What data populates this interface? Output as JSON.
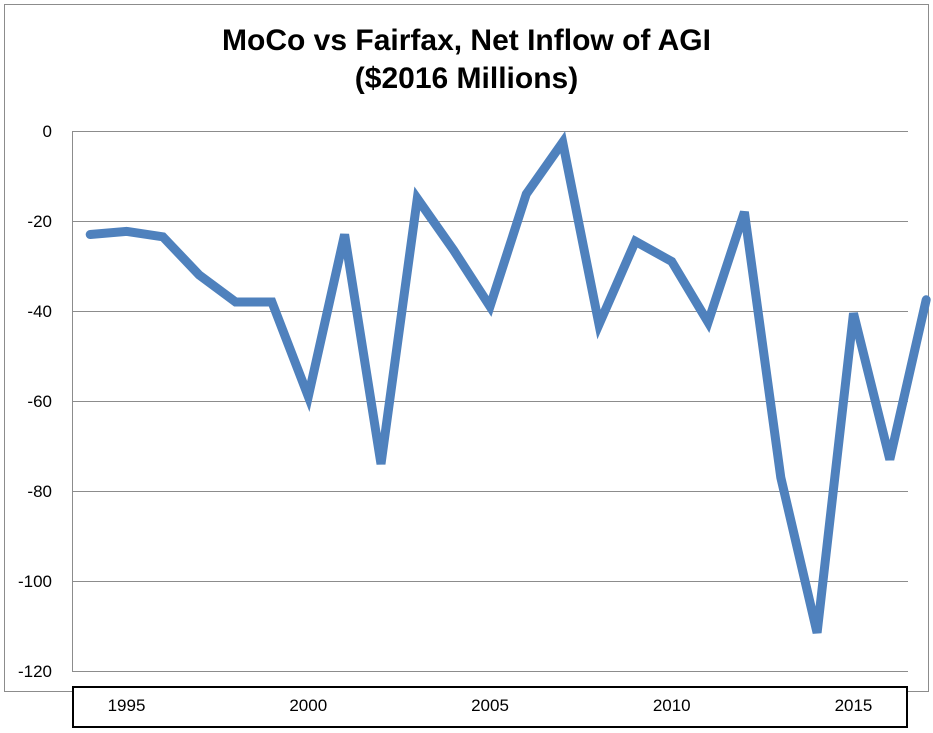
{
  "chart_data": {
    "type": "line",
    "title": "MoCo vs Fairfax, Net Inflow of AGI",
    "subtitle": "($2016 Millions)",
    "xlabel": "",
    "ylabel": "",
    "ylim": [
      -120,
      0
    ],
    "yticks": [
      0,
      -20,
      -40,
      -60,
      -80,
      -100,
      -120
    ],
    "xlim": [
      1993.5,
      2016.5
    ],
    "xticks": [
      1995,
      2000,
      2005,
      2010,
      2015
    ],
    "grid": true,
    "legend": "none",
    "series": [
      {
        "color": "#4f81bd",
        "x": [
          1994,
          1995,
          1996,
          1997,
          1998,
          1999,
          2000,
          2001,
          2002,
          2003,
          2004,
          2005,
          2006,
          2007,
          2008,
          2009,
          2010,
          2011,
          2012,
          2013,
          2014,
          2015,
          2016,
          2017
        ],
        "values": [
          -23,
          -22.3,
          -23.5,
          -32,
          -38,
          -38,
          -59,
          -23,
          -74,
          -15,
          -26.5,
          -39,
          -14,
          -2.5,
          -43,
          -24.5,
          -29,
          -42.5,
          -18,
          -77,
          -111.5,
          -40.5,
          -73,
          -37.5
        ]
      }
    ]
  }
}
